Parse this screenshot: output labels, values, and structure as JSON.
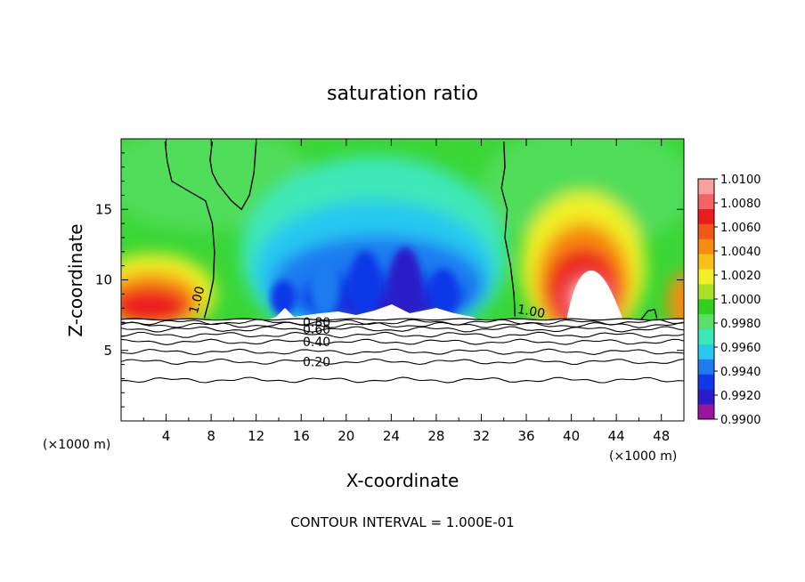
{
  "chart_data": {
    "type": "heatmap",
    "title": "saturation ratio",
    "xlabel": "X-coordinate",
    "ylabel": "Z-coordinate",
    "x_units": "(×1000 m)",
    "x_units_right": "(×1000 m)",
    "xlim": [
      0,
      50
    ],
    "ylim": [
      0,
      20
    ],
    "x_ticks": [
      4,
      8,
      12,
      16,
      20,
      24,
      28,
      32,
      36,
      40,
      44,
      48
    ],
    "x_tick_labels": [
      "4",
      "8",
      "12",
      "16",
      "20",
      "24",
      "28",
      "32",
      "36",
      "40",
      "44",
      "48"
    ],
    "y_ticks": [
      5,
      10,
      15
    ],
    "y_tick_labels": [
      "5",
      "10",
      "15"
    ],
    "colorbar": {
      "min": 0.99,
      "max": 1.01,
      "tick_labels": [
        "1.0100",
        "1.0080",
        "1.0060",
        "1.0040",
        "1.0020",
        "1.0000",
        "0.9980",
        "0.9960",
        "0.9940",
        "0.9920",
        "0.9900"
      ],
      "colors": [
        "#9c139c",
        "#2a1cc8",
        "#1038e8",
        "#1e7cf0",
        "#28c8f0",
        "#3ce8b8",
        "#5ae06a",
        "#34d020",
        "#a8e028",
        "#f0f028",
        "#f8c018",
        "#f88c10",
        "#f05818",
        "#ec1c1c",
        "#f46464",
        "#f8a0a0"
      ]
    },
    "contour_lines": [
      {
        "label": "0.20",
        "z": 4.2
      },
      {
        "label": "0.40",
        "z": 5.6
      },
      {
        "label": "0.60",
        "z": 6.5
      },
      {
        "label": "0.80",
        "z": 7.0
      },
      {
        "label": "1.00",
        "z": 20
      }
    ],
    "extra_contour_levels_z": [
      2.9,
      4.9,
      6.1,
      6.8
    ],
    "cloud_base_z": 7.2,
    "one_contours": [
      {
        "label": "1.00",
        "points": [
          [
            3.9,
            19.8
          ],
          [
            4.1,
            18.4
          ],
          [
            4.5,
            17.0
          ],
          [
            6.2,
            16.2
          ],
          [
            7.5,
            15.6
          ],
          [
            8.1,
            14.0
          ],
          [
            8.3,
            12.0
          ],
          [
            8.2,
            10.0
          ],
          [
            7.8,
            8.5
          ],
          [
            7.4,
            7.3
          ]
        ]
      },
      {
        "label": "",
        "points": [
          [
            8.1,
            19.8
          ],
          [
            7.9,
            18.5
          ],
          [
            8.1,
            17.6
          ],
          [
            8.6,
            16.8
          ],
          [
            9.8,
            15.6
          ],
          [
            10.7,
            15.0
          ],
          [
            11.4,
            16.0
          ],
          [
            11.8,
            17.6
          ],
          [
            12.0,
            19.8
          ]
        ]
      },
      {
        "label": "1.00",
        "points": [
          [
            34.0,
            19.8
          ],
          [
            34.1,
            18.0
          ],
          [
            33.8,
            16.5
          ],
          [
            34.3,
            15.0
          ],
          [
            34.1,
            13.0
          ],
          [
            34.6,
            11.0
          ],
          [
            34.9,
            9.0
          ],
          [
            35.0,
            7.4
          ]
        ]
      },
      {
        "label": "",
        "points": [
          [
            46.2,
            7.2
          ],
          [
            46.8,
            7.8
          ],
          [
            47.4,
            7.9
          ],
          [
            47.6,
            7.3
          ]
        ]
      }
    ],
    "annotation": "CONTOUR INTERVAL = 1.000E-01",
    "grid": false,
    "legend": "colorbar right"
  }
}
